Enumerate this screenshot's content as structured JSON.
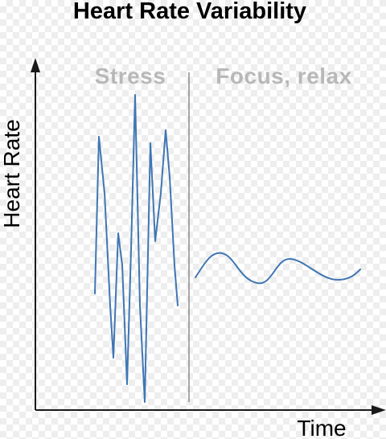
{
  "title": "Heart Rate Variability",
  "axes": {
    "y_label": "Heart Rate",
    "x_label": "Time"
  },
  "regions": [
    {
      "label": "Stress"
    },
    {
      "label": "Focus, relax"
    }
  ],
  "colors": {
    "line": "#3f76b3",
    "axis": "#1a1a1a",
    "divider": "#8a8a8a",
    "region_label": "#b8b8b8"
  }
}
